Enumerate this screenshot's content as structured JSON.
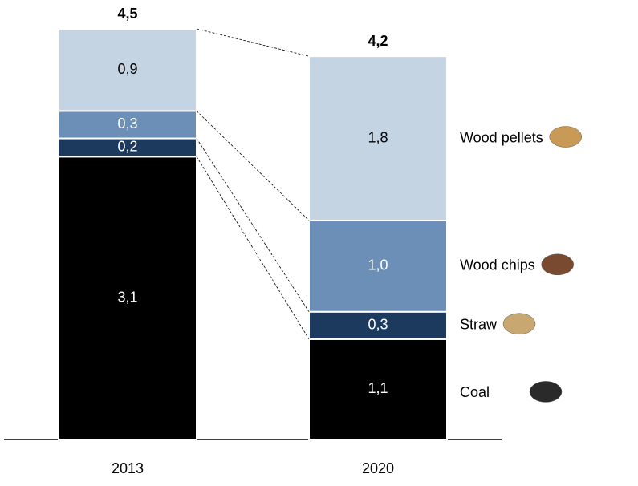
{
  "chart_data": {
    "type": "stacked_bar",
    "categories": [
      "2013",
      "2020"
    ],
    "series": [
      {
        "name": "Coal",
        "color": "#000000",
        "values": [
          3.1,
          1.1
        ],
        "value_labels": [
          "3,1",
          "1,1"
        ]
      },
      {
        "name": "Straw",
        "color": "#1c3a5e",
        "values": [
          0.2,
          0.3
        ],
        "value_labels": [
          "0,2",
          "0,3"
        ]
      },
      {
        "name": "Wood chips",
        "color": "#6b8fb6",
        "values": [
          0.3,
          1.0
        ],
        "value_labels": [
          "0,3",
          "1,0"
        ]
      },
      {
        "name": "Wood pellets",
        "color": "#c4d4e3",
        "values": [
          0.9,
          1.8
        ],
        "value_labels": [
          "0,9",
          "1,8"
        ]
      }
    ],
    "totals": [
      4.5,
      4.2
    ],
    "total_labels": [
      "4,5",
      "4,2"
    ]
  }
}
